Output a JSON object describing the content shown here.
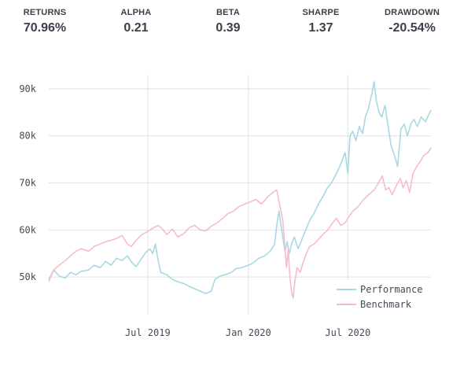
{
  "stats": [
    {
      "label": "RETURNS",
      "value": "70.96%"
    },
    {
      "label": "ALPHA",
      "value": "0.21"
    },
    {
      "label": "BETA",
      "value": "0.39"
    },
    {
      "label": "SHARPE",
      "value": "1.37"
    },
    {
      "label": "DRAWDOWN",
      "value": "-20.54%"
    }
  ],
  "colors": {
    "performance": "#a8d8e4",
    "benchmark": "#f7bccb",
    "grid": "#e2e2e2",
    "text": "#3a3f4b"
  },
  "chart_data": {
    "type": "line",
    "xlim": [
      "2019-01-01",
      "2020-11-30"
    ],
    "ylim": [
      42000,
      93000
    ],
    "x_ticks": [
      {
        "label": "Jul 2019",
        "date": "2019-07-01"
      },
      {
        "label": "Jan 2020",
        "date": "2020-01-01"
      },
      {
        "label": "Jul 2020",
        "date": "2020-07-01"
      }
    ],
    "y_ticks": [
      {
        "label": "50k",
        "value": 50000
      },
      {
        "label": "60k",
        "value": 60000
      },
      {
        "label": "70k",
        "value": 70000
      },
      {
        "label": "80k",
        "value": 80000
      },
      {
        "label": "90k",
        "value": 90000
      }
    ],
    "legend_position": "bottom-right",
    "series": [
      {
        "name": "Performance",
        "color": "#a8d8e4",
        "points": [
          [
            "2019-01-01",
            49500
          ],
          [
            "2019-01-10",
            51500
          ],
          [
            "2019-01-20",
            50200
          ],
          [
            "2019-01-31",
            49800
          ],
          [
            "2019-02-10",
            51000
          ],
          [
            "2019-02-20",
            50500
          ],
          [
            "2019-03-01",
            51200
          ],
          [
            "2019-03-15",
            51500
          ],
          [
            "2019-03-25",
            52500
          ],
          [
            "2019-04-05",
            52000
          ],
          [
            "2019-04-15",
            53300
          ],
          [
            "2019-04-25",
            52500
          ],
          [
            "2019-05-05",
            54000
          ],
          [
            "2019-05-15",
            53500
          ],
          [
            "2019-05-25",
            54500
          ],
          [
            "2019-06-01",
            53200
          ],
          [
            "2019-06-10",
            52200
          ],
          [
            "2019-06-20",
            54000
          ],
          [
            "2019-06-28",
            55300
          ],
          [
            "2019-07-05",
            56000
          ],
          [
            "2019-07-10",
            55000
          ],
          [
            "2019-07-15",
            57000
          ],
          [
            "2019-07-20",
            53500
          ],
          [
            "2019-07-25",
            51000
          ],
          [
            "2019-08-05",
            50500
          ],
          [
            "2019-08-15",
            49500
          ],
          [
            "2019-08-25",
            49000
          ],
          [
            "2019-09-05",
            48600
          ],
          [
            "2019-09-15",
            48000
          ],
          [
            "2019-09-25",
            47500
          ],
          [
            "2019-10-05",
            47000
          ],
          [
            "2019-10-15",
            46500
          ],
          [
            "2019-10-25",
            47000
          ],
          [
            "2019-11-01",
            49500
          ],
          [
            "2019-11-10",
            50200
          ],
          [
            "2019-11-20",
            50500
          ],
          [
            "2019-12-01",
            51000
          ],
          [
            "2019-12-10",
            51800
          ],
          [
            "2019-12-20",
            52000
          ],
          [
            "2020-01-01",
            52500
          ],
          [
            "2020-01-10",
            53000
          ],
          [
            "2020-01-20",
            54000
          ],
          [
            "2020-01-31",
            54500
          ],
          [
            "2020-02-10",
            55500
          ],
          [
            "2020-02-18",
            57000
          ],
          [
            "2020-02-22",
            61000
          ],
          [
            "2020-02-26",
            64000
          ],
          [
            "2020-03-02",
            60000
          ],
          [
            "2020-03-08",
            55500
          ],
          [
            "2020-03-12",
            57500
          ],
          [
            "2020-03-16",
            55000
          ],
          [
            "2020-03-20",
            57000
          ],
          [
            "2020-03-25",
            58500
          ],
          [
            "2020-04-01",
            56000
          ],
          [
            "2020-04-08",
            58000
          ],
          [
            "2020-04-15",
            60000
          ],
          [
            "2020-04-22",
            62000
          ],
          [
            "2020-04-30",
            63500
          ],
          [
            "2020-05-08",
            65500
          ],
          [
            "2020-05-16",
            67000
          ],
          [
            "2020-05-25",
            69000
          ],
          [
            "2020-06-01",
            70000
          ],
          [
            "2020-06-10",
            72000
          ],
          [
            "2020-06-18",
            74000
          ],
          [
            "2020-06-26",
            76500
          ],
          [
            "2020-07-01",
            72000
          ],
          [
            "2020-07-05",
            80000
          ],
          [
            "2020-07-10",
            81000
          ],
          [
            "2020-07-16",
            79000
          ],
          [
            "2020-07-22",
            82000
          ],
          [
            "2020-07-28",
            80500
          ],
          [
            "2020-08-02",
            84000
          ],
          [
            "2020-08-08",
            86000
          ],
          [
            "2020-08-14",
            89000
          ],
          [
            "2020-08-18",
            91500
          ],
          [
            "2020-08-22",
            87500
          ],
          [
            "2020-08-27",
            85000
          ],
          [
            "2020-09-01",
            84000
          ],
          [
            "2020-09-07",
            86500
          ],
          [
            "2020-09-12",
            82500
          ],
          [
            "2020-09-18",
            78000
          ],
          [
            "2020-09-24",
            76000
          ],
          [
            "2020-09-30",
            73500
          ],
          [
            "2020-10-06",
            81500
          ],
          [
            "2020-10-12",
            82500
          ],
          [
            "2020-10-18",
            80000
          ],
          [
            "2020-10-24",
            82500
          ],
          [
            "2020-10-30",
            83500
          ],
          [
            "2020-11-05",
            82000
          ],
          [
            "2020-11-12",
            84000
          ],
          [
            "2020-11-20",
            83000
          ],
          [
            "2020-11-30",
            85500
          ]
        ]
      },
      {
        "name": "Benchmark",
        "color": "#f7bccb",
        "points": [
          [
            "2019-01-01",
            49000
          ],
          [
            "2019-01-10",
            51500
          ],
          [
            "2019-01-20",
            52500
          ],
          [
            "2019-01-31",
            53500
          ],
          [
            "2019-02-10",
            54500
          ],
          [
            "2019-02-20",
            55500
          ],
          [
            "2019-03-01",
            56000
          ],
          [
            "2019-03-15",
            55500
          ],
          [
            "2019-03-25",
            56500
          ],
          [
            "2019-04-05",
            57000
          ],
          [
            "2019-04-15",
            57500
          ],
          [
            "2019-04-25",
            57800
          ],
          [
            "2019-05-05",
            58200
          ],
          [
            "2019-05-15",
            58800
          ],
          [
            "2019-05-25",
            57000
          ],
          [
            "2019-06-01",
            56500
          ],
          [
            "2019-06-10",
            57800
          ],
          [
            "2019-06-20",
            59000
          ],
          [
            "2019-06-28",
            59500
          ],
          [
            "2019-07-05",
            60000
          ],
          [
            "2019-07-12",
            60500
          ],
          [
            "2019-07-20",
            61000
          ],
          [
            "2019-07-28",
            60200
          ],
          [
            "2019-08-05",
            59000
          ],
          [
            "2019-08-15",
            60200
          ],
          [
            "2019-08-25",
            58500
          ],
          [
            "2019-09-05",
            59200
          ],
          [
            "2019-09-15",
            60500
          ],
          [
            "2019-09-25",
            61000
          ],
          [
            "2019-10-05",
            60000
          ],
          [
            "2019-10-15",
            59800
          ],
          [
            "2019-10-25",
            60800
          ],
          [
            "2019-11-05",
            61500
          ],
          [
            "2019-11-15",
            62500
          ],
          [
            "2019-11-25",
            63500
          ],
          [
            "2019-12-05",
            64000
          ],
          [
            "2019-12-15",
            65000
          ],
          [
            "2019-12-25",
            65500
          ],
          [
            "2020-01-05",
            66000
          ],
          [
            "2020-01-15",
            66500
          ],
          [
            "2020-01-25",
            65500
          ],
          [
            "2020-02-05",
            67000
          ],
          [
            "2020-02-15",
            68000
          ],
          [
            "2020-02-22",
            68500
          ],
          [
            "2020-02-28",
            65000
          ],
          [
            "2020-03-04",
            62000
          ],
          [
            "2020-03-08",
            56000
          ],
          [
            "2020-03-11",
            52000
          ],
          [
            "2020-03-14",
            56000
          ],
          [
            "2020-03-17",
            50000
          ],
          [
            "2020-03-20",
            47000
          ],
          [
            "2020-03-23",
            45500
          ],
          [
            "2020-03-26",
            49000
          ],
          [
            "2020-03-30",
            52000
          ],
          [
            "2020-04-05",
            51000
          ],
          [
            "2020-04-10",
            53000
          ],
          [
            "2020-04-16",
            55000
          ],
          [
            "2020-04-22",
            56500
          ],
          [
            "2020-04-30",
            57000
          ],
          [
            "2020-05-08",
            58000
          ],
          [
            "2020-05-16",
            59000
          ],
          [
            "2020-05-25",
            60000
          ],
          [
            "2020-06-03",
            61500
          ],
          [
            "2020-06-10",
            62500
          ],
          [
            "2020-06-18",
            61000
          ],
          [
            "2020-06-26",
            61500
          ],
          [
            "2020-07-01",
            62500
          ],
          [
            "2020-07-10",
            64000
          ],
          [
            "2020-07-20",
            65000
          ],
          [
            "2020-07-30",
            66500
          ],
          [
            "2020-08-08",
            67500
          ],
          [
            "2020-08-18",
            68500
          ],
          [
            "2020-08-26",
            70000
          ],
          [
            "2020-09-02",
            71500
          ],
          [
            "2020-09-08",
            68500
          ],
          [
            "2020-09-14",
            69000
          ],
          [
            "2020-09-20",
            67500
          ],
          [
            "2020-09-28",
            69500
          ],
          [
            "2020-10-05",
            71000
          ],
          [
            "2020-10-10",
            69000
          ],
          [
            "2020-10-16",
            70500
          ],
          [
            "2020-10-22",
            68000
          ],
          [
            "2020-10-28",
            72000
          ],
          [
            "2020-11-04",
            73500
          ],
          [
            "2020-11-10",
            74500
          ],
          [
            "2020-11-18",
            76000
          ],
          [
            "2020-11-25",
            76500
          ],
          [
            "2020-11-30",
            77500
          ]
        ]
      }
    ]
  }
}
